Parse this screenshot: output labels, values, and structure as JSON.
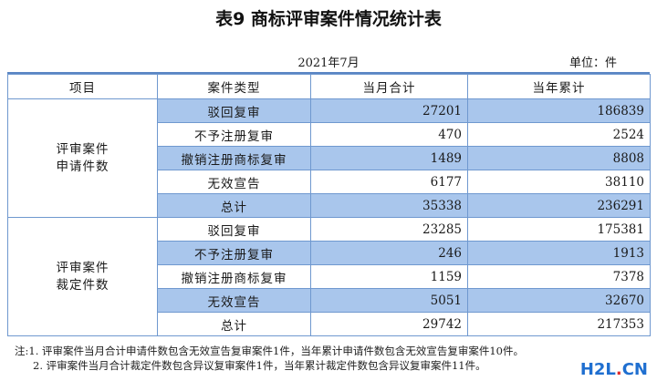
{
  "title": "表9 商标评审案件情况统计表",
  "date": "2021年7月",
  "unit": "单位：件",
  "headers": [
    "项目",
    "案件类型",
    "当月合计",
    "当年累计"
  ],
  "groups": [
    {
      "label_line1": "评审案件",
      "label_line2": "申请件数",
      "rows": [
        {
          "type": "驳回复审",
          "month": "27201",
          "year": "186839"
        },
        {
          "type": "不予注册复审",
          "month": "470",
          "year": "2524"
        },
        {
          "type": "撤销注册商标复审",
          "month": "1489",
          "year": "8808"
        },
        {
          "type": "无效宣告",
          "month": "6177",
          "year": "38110"
        },
        {
          "type": "总计",
          "month": "35338",
          "year": "236291"
        }
      ]
    },
    {
      "label_line1": "评审案件",
      "label_line2": "裁定件数",
      "rows": [
        {
          "type": "驳回复审",
          "month": "23285",
          "year": "175381"
        },
        {
          "type": "不予注册复审",
          "month": "246",
          "year": "1913"
        },
        {
          "type": "撤销注册商标复审",
          "month": "1159",
          "year": "7378"
        },
        {
          "type": "无效宣告",
          "month": "5051",
          "year": "32670"
        },
        {
          "type": "总计",
          "month": "29742",
          "year": "217353"
        }
      ]
    }
  ],
  "notes": [
    "注:1. 评审案件当月合计申请件数包含无效宣告复审案件1件，当年累计申请件数包含无效宣告复审案件10件。",
    "2. 评审案件当月合计裁定件数包含异议复审案件1件，当年累计裁定件数包含异议复审案件11件。"
  ],
  "watermark": {
    "part1": "H2L",
    "part2": ".",
    "part3": "CN"
  },
  "colors": {
    "shade": "#a9c6ec",
    "border": "#6f98cf",
    "watermark": "#1f6fd0"
  }
}
